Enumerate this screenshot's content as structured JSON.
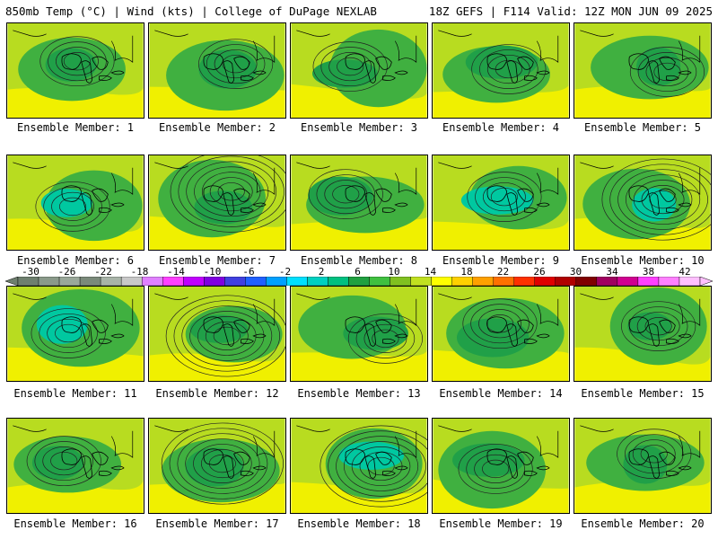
{
  "header": {
    "left": "850mb Temp (°C) | Wind (kts) | College of DuPage NEXLAB",
    "right": "18Z GEFS | F114 Valid: 12Z MON JUN 09 2025"
  },
  "panels": [
    {
      "label": "Ensemble Member: 1"
    },
    {
      "label": "Ensemble Member: 2"
    },
    {
      "label": "Ensemble Member: 3"
    },
    {
      "label": "Ensemble Member: 4"
    },
    {
      "label": "Ensemble Member: 5"
    },
    {
      "label": "Ensemble Member: 6"
    },
    {
      "label": "Ensemble Member: 7"
    },
    {
      "label": "Ensemble Member: 8"
    },
    {
      "label": "Ensemble Member: 9"
    },
    {
      "label": "Ensemble Member: 10"
    },
    {
      "label": "Ensemble Member: 11"
    },
    {
      "label": "Ensemble Member: 12"
    },
    {
      "label": "Ensemble Member: 13"
    },
    {
      "label": "Ensemble Member: 14"
    },
    {
      "label": "Ensemble Member: 15"
    },
    {
      "label": "Ensemble Member: 16"
    },
    {
      "label": "Ensemble Member: 17"
    },
    {
      "label": "Ensemble Member: 18"
    },
    {
      "label": "Ensemble Member: 19"
    },
    {
      "label": "Ensemble Member: 20"
    }
  ],
  "colorbar": {
    "ticks": [
      "-30",
      "-26",
      "-22",
      "-18",
      "-14",
      "-10",
      "-6",
      "-2",
      "2",
      "6",
      "10",
      "14",
      "18",
      "22",
      "26",
      "30",
      "34",
      "38",
      "42"
    ],
    "colors": [
      "#6e7f6e",
      "#8a9a8a",
      "#9aa89a",
      "#7a8a7a",
      "#a8b4a8",
      "#c8c8c8",
      "#e080ff",
      "#ff40ff",
      "#c000ff",
      "#8000e0",
      "#4040e0",
      "#2060ff",
      "#00a0ff",
      "#00e0ff",
      "#00d0c0",
      "#00c080",
      "#20a040",
      "#40c040",
      "#80c020",
      "#c0e020",
      "#ffff00",
      "#ffd000",
      "#ffa000",
      "#ff7000",
      "#ff3000",
      "#e00000",
      "#b00000",
      "#800000",
      "#a00060",
      "#d00090",
      "#ff40ff",
      "#ff80ff",
      "#ffc0ff"
    ]
  }
}
